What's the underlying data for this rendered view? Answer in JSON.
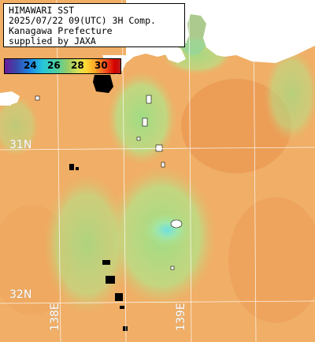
{
  "info": {
    "lines": [
      "HIMAWARI SST",
      "2025/07/22 09(UTC) 3H Comp.",
      "Kanagawa Prefecture",
      "supplied by JAXA"
    ]
  },
  "colorbar": {
    "ticks": [
      "24",
      "26",
      "28",
      "30"
    ]
  },
  "grid": {
    "lat_labels": [
      "31N",
      "32N"
    ],
    "lon_labels": [
      "138E",
      "139E"
    ]
  },
  "colors": {
    "land": "#ffffff",
    "cloud_missing": "#000000",
    "grid": "#ffffff"
  }
}
